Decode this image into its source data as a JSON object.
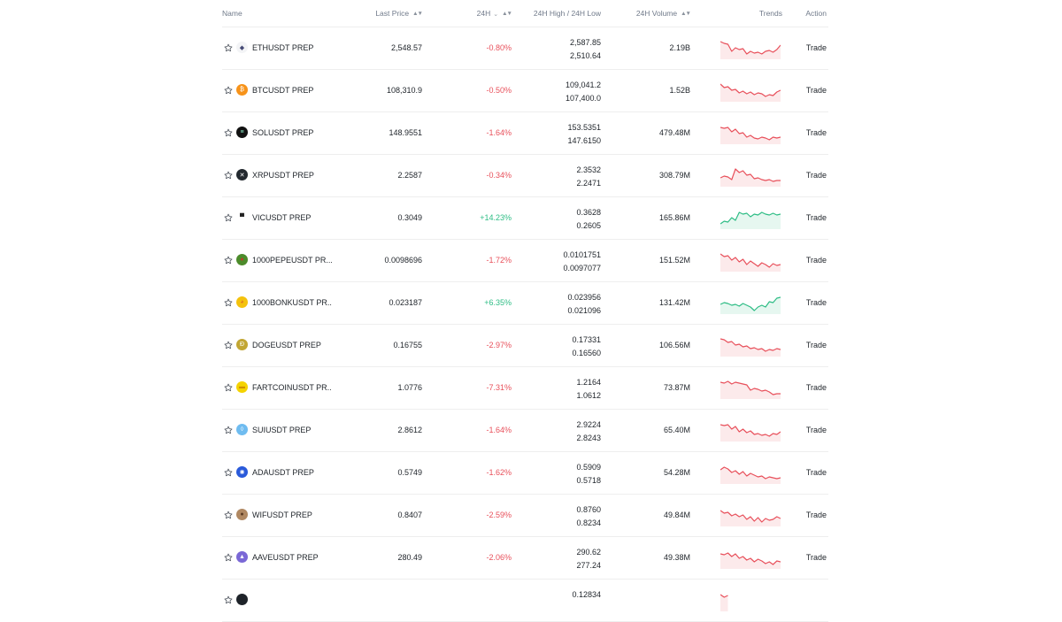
{
  "headers": {
    "name": "Name",
    "last_price": "Last Price",
    "change": "24H",
    "high_low": "24H High / 24H Low",
    "volume": "24H Volume",
    "trends": "Trends",
    "action": "Action"
  },
  "colors": {
    "negative": "#e8505b",
    "positive": "#2ebd85"
  },
  "rows": [
    {
      "symbol": "ETHUSDT PREP",
      "icon": "ethereum-icon",
      "price": "2,548.57",
      "change": "-0.80%",
      "dir": "neg",
      "high": "2,587.85",
      "low": "2,510.64",
      "volume": "2.19B",
      "trend": [
        0.9,
        0.8,
        0.75,
        0.35,
        0.55,
        0.45,
        0.5,
        0.2,
        0.35,
        0.25,
        0.3,
        0.2,
        0.35,
        0.4,
        0.3,
        0.45,
        0.7
      ],
      "action": "Trade"
    },
    {
      "symbol": "BTCUSDT PREP",
      "icon": "bitcoin-icon",
      "price": "108,310.9",
      "change": "-0.50%",
      "dir": "neg",
      "high": "109,041.2",
      "low": "107,400.0",
      "volume": "1.52B",
      "trend": [
        0.9,
        0.7,
        0.75,
        0.55,
        0.6,
        0.4,
        0.5,
        0.35,
        0.45,
        0.3,
        0.4,
        0.35,
        0.2,
        0.3,
        0.25,
        0.45,
        0.55
      ],
      "action": "Trade"
    },
    {
      "symbol": "SOLUSDT PREP",
      "icon": "solana-icon",
      "price": "148.9551",
      "change": "-1.64%",
      "dir": "neg",
      "high": "153.5351",
      "low": "147.6150",
      "volume": "479.48M",
      "trend": [
        0.85,
        0.8,
        0.85,
        0.6,
        0.75,
        0.5,
        0.55,
        0.3,
        0.4,
        0.25,
        0.2,
        0.3,
        0.25,
        0.15,
        0.3,
        0.25,
        0.3
      ],
      "action": "Trade"
    },
    {
      "symbol": "XRPUSDT PREP",
      "icon": "xrp-icon",
      "price": "2.2587",
      "change": "-0.34%",
      "dir": "neg",
      "high": "2.3532",
      "low": "2.2471",
      "volume": "308.79M",
      "trend": [
        0.4,
        0.5,
        0.45,
        0.3,
        0.9,
        0.7,
        0.8,
        0.55,
        0.6,
        0.35,
        0.4,
        0.3,
        0.25,
        0.3,
        0.2,
        0.25,
        0.25
      ],
      "action": "Trade"
    },
    {
      "symbol": "VICUSDT PREP",
      "icon": "vic-icon",
      "price": "0.3049",
      "change": "+14.23%",
      "dir": "pos",
      "high": "0.3628",
      "low": "0.2605",
      "volume": "165.86M",
      "trend": [
        0.2,
        0.35,
        0.3,
        0.55,
        0.4,
        0.85,
        0.75,
        0.8,
        0.6,
        0.75,
        0.7,
        0.85,
        0.75,
        0.7,
        0.8,
        0.7,
        0.75
      ],
      "action": "Trade"
    },
    {
      "symbol": "1000PEPEUSDT PR...",
      "icon": "pepe-icon",
      "price": "0.0098696",
      "change": "-1.72%",
      "dir": "neg",
      "high": "0.0101751",
      "low": "0.0097077",
      "volume": "151.52M",
      "trend": [
        0.9,
        0.75,
        0.8,
        0.55,
        0.7,
        0.45,
        0.6,
        0.3,
        0.5,
        0.35,
        0.2,
        0.4,
        0.3,
        0.15,
        0.35,
        0.25,
        0.3
      ],
      "action": "Trade"
    },
    {
      "symbol": "1000BONKUSDT PR...",
      "icon": "bonk-icon",
      "price": "0.023187",
      "change": "+6.35%",
      "dir": "pos",
      "high": "0.023956",
      "low": "0.021096",
      "volume": "131.42M",
      "trend": [
        0.45,
        0.55,
        0.5,
        0.4,
        0.45,
        0.35,
        0.5,
        0.4,
        0.3,
        0.1,
        0.3,
        0.4,
        0.3,
        0.6,
        0.55,
        0.8,
        0.85
      ],
      "action": "Trade"
    },
    {
      "symbol": "DOGEUSDT PREP",
      "icon": "dogecoin-icon",
      "price": "0.16755",
      "change": "-2.97%",
      "dir": "neg",
      "high": "0.17331",
      "low": "0.16560",
      "volume": "106.56M",
      "trend": [
        0.9,
        0.85,
        0.7,
        0.75,
        0.55,
        0.6,
        0.45,
        0.5,
        0.35,
        0.4,
        0.3,
        0.35,
        0.2,
        0.3,
        0.25,
        0.35,
        0.3
      ],
      "action": "Trade"
    },
    {
      "symbol": "FARTCOINUSDT PR...",
      "icon": "fartcoin-icon",
      "price": "1.0776",
      "change": "-7.31%",
      "dir": "neg",
      "high": "1.2164",
      "low": "1.0612",
      "volume": "73.87M",
      "trend": [
        0.85,
        0.8,
        0.9,
        0.75,
        0.85,
        0.8,
        0.75,
        0.7,
        0.4,
        0.5,
        0.45,
        0.35,
        0.4,
        0.3,
        0.15,
        0.2,
        0.2
      ],
      "action": "Trade"
    },
    {
      "symbol": "SUIUSDT PREP",
      "icon": "sui-icon",
      "price": "2.8612",
      "change": "-1.64%",
      "dir": "neg",
      "high": "2.9224",
      "low": "2.8243",
      "volume": "65.40M",
      "trend": [
        0.85,
        0.8,
        0.85,
        0.6,
        0.75,
        0.45,
        0.6,
        0.4,
        0.5,
        0.3,
        0.35,
        0.25,
        0.3,
        0.2,
        0.35,
        0.3,
        0.45
      ],
      "action": "Trade"
    },
    {
      "symbol": "ADAUSDT PREP",
      "icon": "cardano-icon",
      "price": "0.5749",
      "change": "-1.62%",
      "dir": "neg",
      "high": "0.5909",
      "low": "0.5718",
      "volume": "54.28M",
      "trend": [
        0.7,
        0.85,
        0.75,
        0.55,
        0.65,
        0.45,
        0.6,
        0.35,
        0.5,
        0.4,
        0.3,
        0.35,
        0.2,
        0.3,
        0.25,
        0.2,
        0.25
      ],
      "action": "Trade"
    },
    {
      "symbol": "WIFUSDT PREP",
      "icon": "wif-icon",
      "price": "0.8407",
      "change": "-2.59%",
      "dir": "neg",
      "high": "0.8760",
      "low": "0.8234",
      "volume": "49.84M",
      "trend": [
        0.8,
        0.65,
        0.7,
        0.5,
        0.6,
        0.45,
        0.55,
        0.3,
        0.45,
        0.2,
        0.4,
        0.15,
        0.35,
        0.25,
        0.3,
        0.45,
        0.35
      ],
      "action": "Trade"
    },
    {
      "symbol": "AAVEUSDT PREP",
      "icon": "aave-icon",
      "price": "280.49",
      "change": "-2.06%",
      "dir": "neg",
      "high": "290.62",
      "low": "277.24",
      "volume": "49.38M",
      "trend": [
        0.75,
        0.7,
        0.8,
        0.6,
        0.75,
        0.5,
        0.6,
        0.4,
        0.5,
        0.3,
        0.45,
        0.35,
        0.2,
        0.3,
        0.15,
        0.35,
        0.3
      ],
      "action": "Trade"
    },
    {
      "symbol": "",
      "icon": "coin-icon",
      "price": "",
      "change": "",
      "dir": "neg",
      "high": "0.12834",
      "low": "",
      "volume": "",
      "trend": [
        0.85,
        0.7,
        0.8
      ],
      "action": ""
    }
  ]
}
